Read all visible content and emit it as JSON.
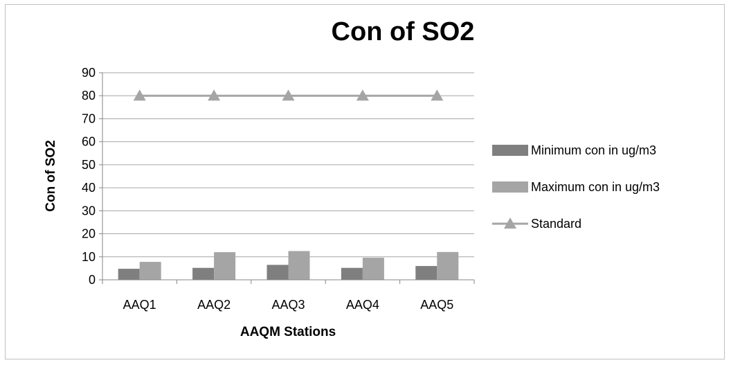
{
  "chart_data": {
    "type": "bar",
    "title": "Con of SO2",
    "xlabel": "AAQM Stations",
    "ylabel": "Con of SO2",
    "categories": [
      "AAQ1",
      "AAQ2",
      "AAQ3",
      "AAQ4",
      "AAQ5"
    ],
    "ylim": [
      0,
      90
    ],
    "yticks": [
      0,
      10,
      20,
      30,
      40,
      50,
      60,
      70,
      80,
      90
    ],
    "grid": true,
    "legend_position": "right",
    "series": [
      {
        "name": "Minimum con in ug/m3",
        "kind": "bar",
        "color": "#7f7f7f",
        "values": [
          4.8,
          5.2,
          6.5,
          5.2,
          6.0
        ]
      },
      {
        "name": "Maximum con in ug/m3",
        "kind": "bar",
        "color": "#a5a5a5",
        "values": [
          7.8,
          12.0,
          12.5,
          9.6,
          12.1
        ]
      },
      {
        "name": "Standard",
        "kind": "line",
        "marker": "triangle",
        "color": "#a5a5a5",
        "values": [
          80,
          80,
          80,
          80,
          80
        ]
      }
    ]
  }
}
